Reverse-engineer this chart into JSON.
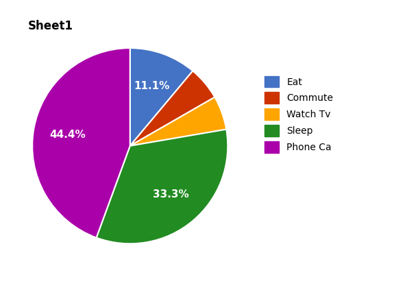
{
  "title": "Sheet1",
  "labels": [
    "Eat",
    "Commute",
    "Watch Tv",
    "Sleep",
    "Phone Ca"
  ],
  "values": [
    11.1,
    5.6,
    5.6,
    33.3,
    44.4
  ],
  "colors": [
    "#4472C4",
    "#CC3300",
    "#FFA500",
    "#228B22",
    "#AA00AA"
  ],
  "title_fontsize": 12,
  "label_fontsize": 11,
  "background_color": "#ffffff",
  "startangle": 90,
  "pctdistance": 0.65
}
